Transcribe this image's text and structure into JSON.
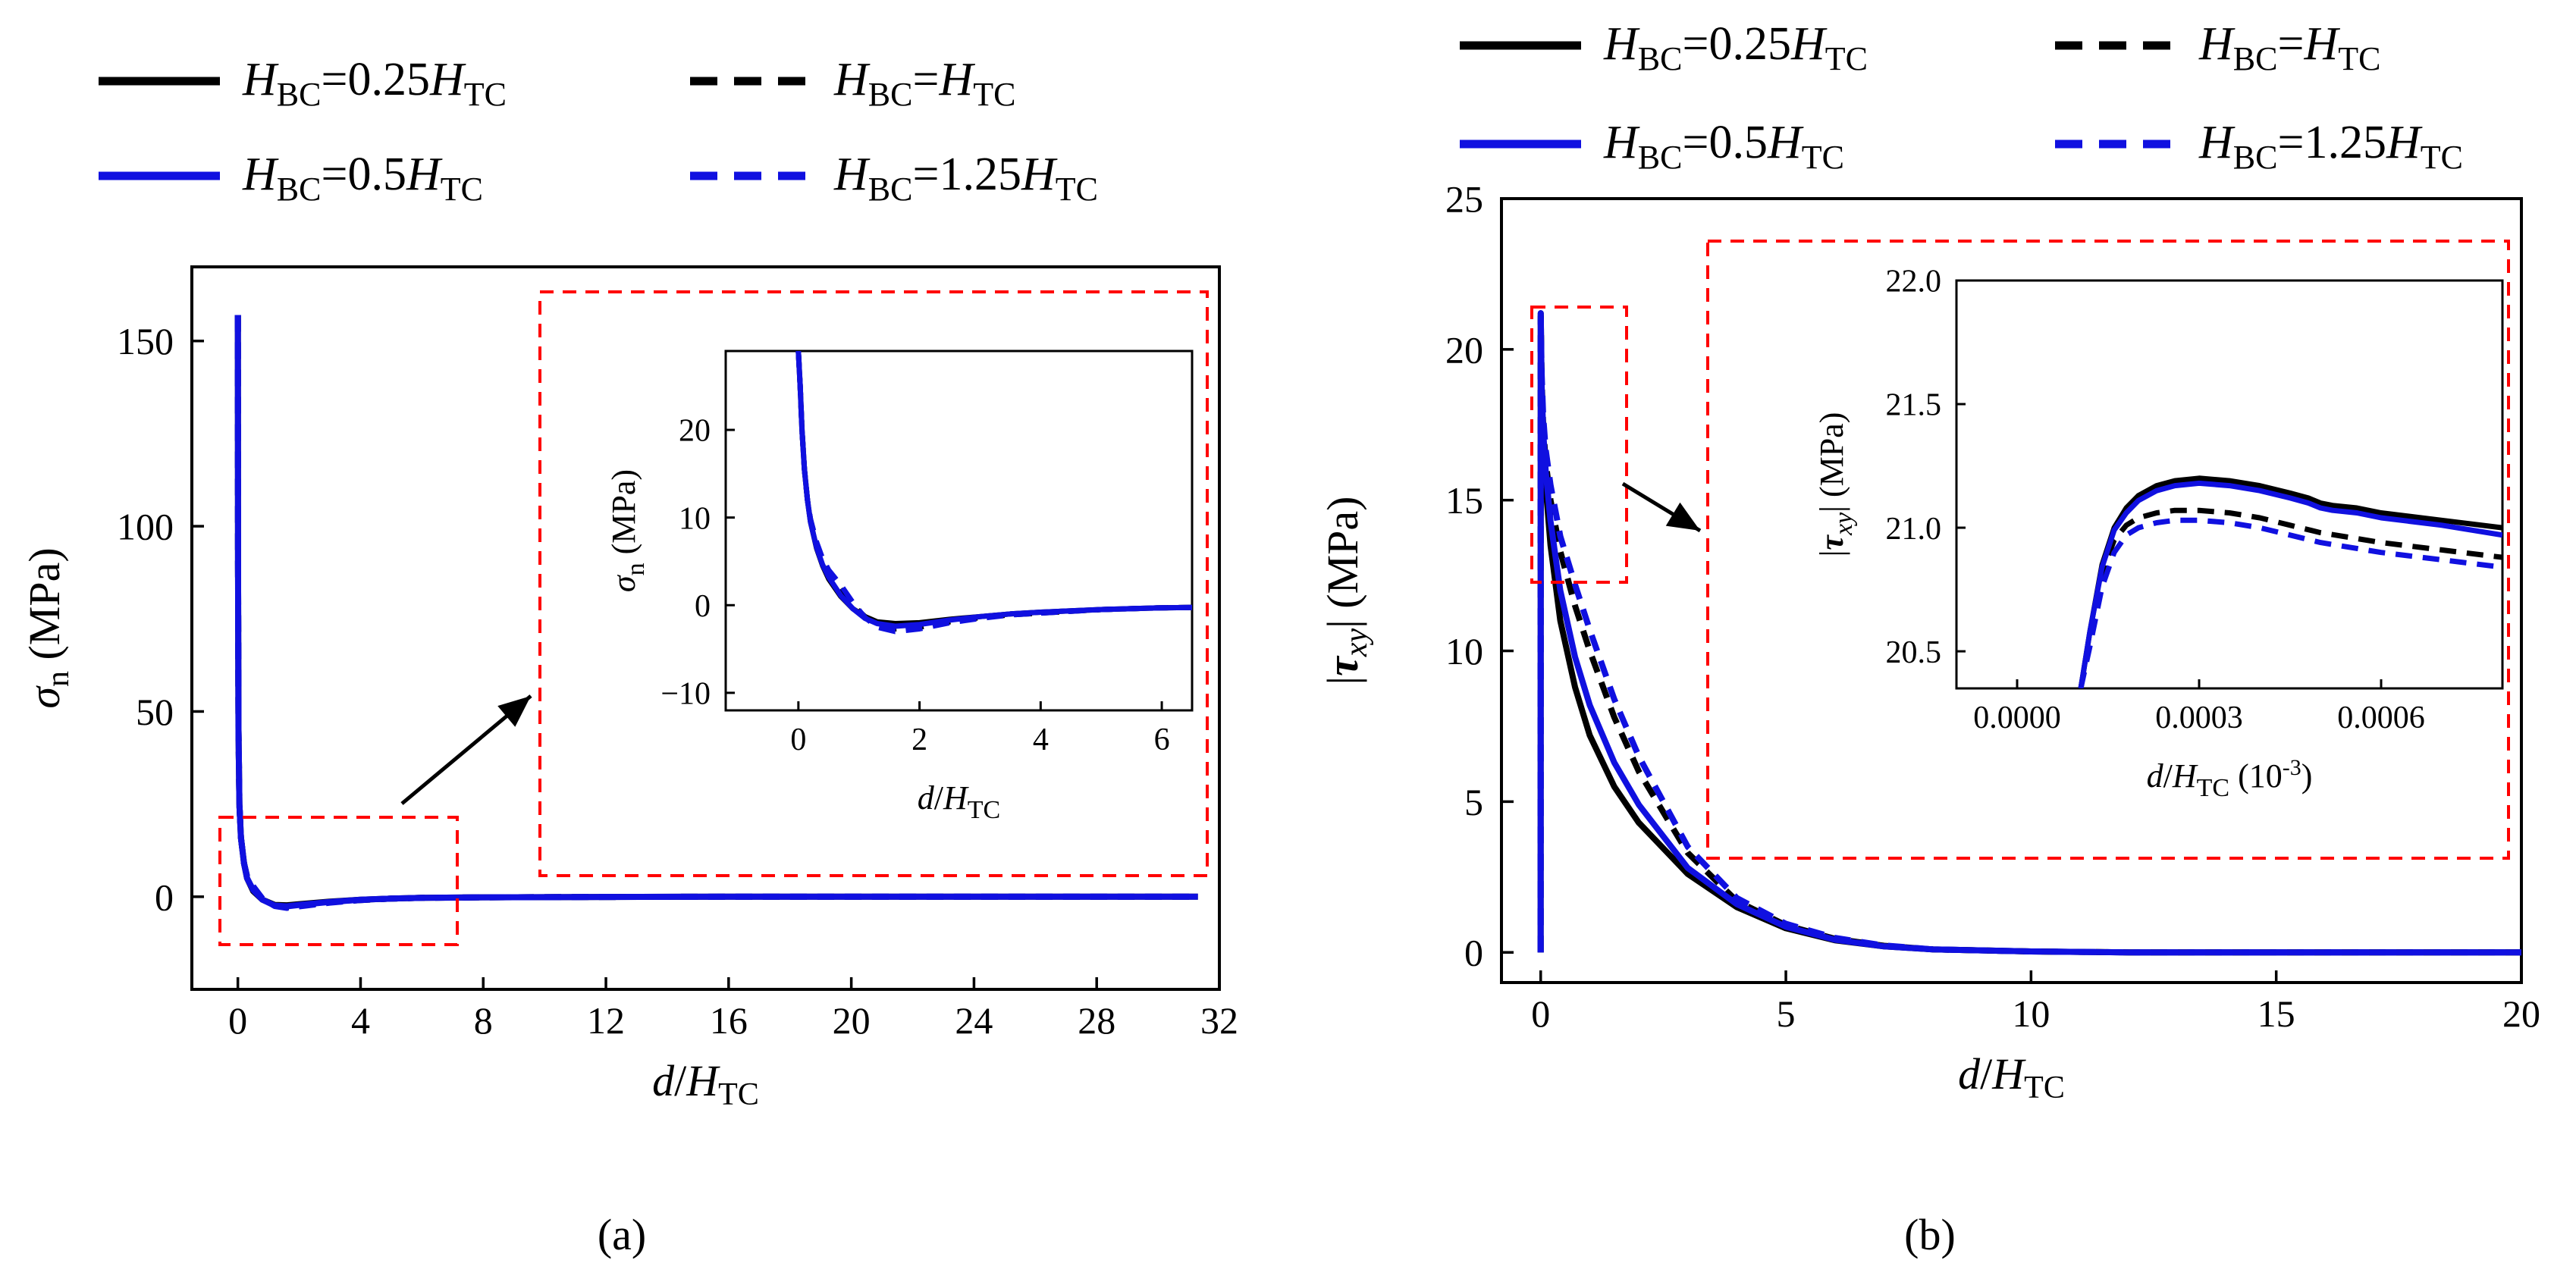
{
  "chart_data": [
    {
      "id": "a",
      "type": "line",
      "caption": "(a)",
      "xlabel": "d/HTC",
      "ylabel": "σn (MPa)",
      "xlim": [
        -1.5,
        32
      ],
      "ylim": [
        -25,
        170
      ],
      "xticks": [
        0,
        4,
        8,
        12,
        16,
        20,
        24,
        28,
        32
      ],
      "yticks": [
        0,
        50,
        100,
        150
      ],
      "zoom_region": {
        "x": [
          -0.5,
          6.5
        ],
        "y": [
          -12,
          22
        ]
      },
      "legend": [
        {
          "name": "HBC=0.25HTC",
          "base": "H",
          "sub1": "BC",
          "eq": "=0.25",
          "base2": "H",
          "sub2": "TC",
          "color": "#000000",
          "dash": "solid"
        },
        {
          "name": "HBC=HTC",
          "base": "H",
          "sub1": "BC",
          "eq": "=",
          "base2": "H",
          "sub2": "TC",
          "color": "#000000",
          "dash": "dashed"
        },
        {
          "name": "HBC=0.5HTC",
          "base": "H",
          "sub1": "BC",
          "eq": "=0.5",
          "base2": "H",
          "sub2": "TC",
          "color": "#1010e0",
          "dash": "solid"
        },
        {
          "name": "HBC=1.25HTC",
          "base": "H",
          "sub1": "BC",
          "eq": "=1.25",
          "base2": "H",
          "sub2": "TC",
          "color": "#1010e0",
          "dash": "dashed"
        }
      ],
      "series": [
        {
          "name": "HBC=0.25HTC",
          "color": "#000000",
          "dash": "solid",
          "x": [
            0,
            0.005,
            0.02,
            0.05,
            0.1,
            0.2,
            0.3,
            0.5,
            0.8,
            1.2,
            1.6,
            2,
            3,
            4,
            5,
            6,
            8,
            12,
            16,
            20,
            25,
            31.3
          ],
          "y": [
            157,
            90,
            45,
            25,
            16,
            9,
            5,
            1.5,
            -0.8,
            -2.2,
            -2.3,
            -2.0,
            -1.3,
            -0.8,
            -0.5,
            -0.3,
            -0.15,
            -0.05,
            0,
            0,
            0,
            0
          ]
        },
        {
          "name": "HBC=HTC",
          "color": "#000000",
          "dash": "dashed",
          "x": [
            0,
            0.005,
            0.02,
            0.05,
            0.1,
            0.2,
            0.3,
            0.5,
            0.8,
            1.2,
            1.6,
            2,
            3,
            4,
            5,
            6,
            8,
            12,
            16,
            20,
            25,
            31.3
          ],
          "y": [
            157,
            90,
            45,
            25,
            16,
            9,
            5.5,
            2.5,
            -0.5,
            -2.3,
            -2.8,
            -2.4,
            -1.5,
            -0.9,
            -0.5,
            -0.3,
            -0.15,
            -0.05,
            0,
            0,
            0,
            0
          ]
        },
        {
          "name": "HBC=0.5HTC",
          "color": "#1010e0",
          "dash": "solid",
          "x": [
            0,
            0.005,
            0.02,
            0.05,
            0.1,
            0.2,
            0.3,
            0.5,
            0.8,
            1.2,
            1.6,
            2,
            3,
            4,
            5,
            6,
            8,
            12,
            16,
            20,
            25,
            31.3
          ],
          "y": [
            157,
            90,
            45,
            25,
            16,
            9,
            5,
            1.8,
            -0.8,
            -2.4,
            -2.6,
            -2.2,
            -1.4,
            -0.8,
            -0.5,
            -0.3,
            -0.15,
            -0.05,
            0,
            0,
            0,
            0
          ]
        },
        {
          "name": "HBC=1.25HTC",
          "color": "#1010e0",
          "dash": "dashed",
          "x": [
            0,
            0.005,
            0.02,
            0.05,
            0.1,
            0.2,
            0.3,
            0.5,
            0.8,
            1.2,
            1.6,
            2,
            3,
            4,
            5,
            6,
            8,
            12,
            16,
            20,
            25,
            31.3
          ],
          "y": [
            157,
            90,
            45,
            25,
            16,
            9,
            5.5,
            2.8,
            -0.5,
            -2.5,
            -3.0,
            -2.6,
            -1.6,
            -0.9,
            -0.5,
            -0.3,
            -0.15,
            -0.05,
            0,
            0,
            0,
            0
          ]
        }
      ],
      "inset": {
        "xlabel": "d/HTC",
        "ylabel": "σn (MPa)",
        "xlim": [
          -1.2,
          6.5
        ],
        "ylim": [
          -12,
          29
        ],
        "xticks": [
          0,
          2,
          4,
          6
        ],
        "yticks": [
          -10,
          0,
          10,
          20
        ],
        "ytick_labels": [
          "−10",
          "0",
          "10",
          "20"
        ],
        "series": [
          {
            "name": "HBC=0.25HTC",
            "color": "#000000",
            "dash": "solid",
            "x": [
              0,
              0.03,
              0.06,
              0.1,
              0.15,
              0.2,
              0.3,
              0.4,
              0.5,
              0.7,
              0.9,
              1.1,
              1.3,
              1.6,
              2,
              2.5,
              3,
              3.5,
              4,
              5,
              6,
              6.5
            ],
            "y": [
              29,
              25,
              20,
              15.5,
              12,
              9.5,
              6.5,
              4.5,
              3,
              1,
              -0.4,
              -1.3,
              -1.9,
              -2.1,
              -2.0,
              -1.6,
              -1.3,
              -1.0,
              -0.8,
              -0.5,
              -0.3,
              -0.25
            ]
          },
          {
            "name": "HBC=HTC",
            "color": "#000000",
            "dash": "dashed",
            "x": [
              0,
              0.03,
              0.06,
              0.1,
              0.15,
              0.2,
              0.3,
              0.4,
              0.5,
              0.7,
              0.9,
              1.1,
              1.3,
              1.6,
              2,
              2.5,
              3,
              3.5,
              4,
              5,
              6,
              6.5
            ],
            "y": [
              29,
              25,
              20,
              15.5,
              12,
              9.8,
              7,
              5,
              3.7,
              1.8,
              0,
              -1.3,
              -2.2,
              -2.7,
              -2.5,
              -1.9,
              -1.4,
              -1.1,
              -0.9,
              -0.5,
              -0.3,
              -0.25
            ]
          },
          {
            "name": "HBC=0.5HTC",
            "color": "#1010e0",
            "dash": "solid",
            "x": [
              0,
              0.03,
              0.06,
              0.1,
              0.15,
              0.2,
              0.3,
              0.4,
              0.5,
              0.7,
              0.9,
              1.1,
              1.3,
              1.6,
              2,
              2.5,
              3,
              3.5,
              4,
              5,
              6,
              6.5
            ],
            "y": [
              29,
              25,
              20,
              15.5,
              12,
              9.5,
              6.6,
              4.6,
              3.2,
              1.1,
              -0.4,
              -1.5,
              -2.1,
              -2.4,
              -2.2,
              -1.7,
              -1.3,
              -1.0,
              -0.8,
              -0.5,
              -0.3,
              -0.25
            ]
          },
          {
            "name": "HBC=1.25HTC",
            "color": "#1010e0",
            "dash": "dashed",
            "x": [
              0,
              0.03,
              0.06,
              0.1,
              0.15,
              0.2,
              0.3,
              0.4,
              0.5,
              0.7,
              0.9,
              1.1,
              1.3,
              1.6,
              2,
              2.5,
              3,
              3.5,
              4,
              5,
              6,
              6.5
            ],
            "y": [
              29,
              25,
              20,
              15.5,
              12,
              9.8,
              7.2,
              5.3,
              4,
              2.3,
              0.3,
              -1.4,
              -2.5,
              -3.0,
              -2.7,
              -2.0,
              -1.5,
              -1.1,
              -0.9,
              -0.5,
              -0.3,
              -0.25
            ]
          }
        ]
      }
    },
    {
      "id": "b",
      "type": "line",
      "caption": "(b)",
      "xlabel": "d/HTC",
      "ylabel": "|τxy| (MPa)",
      "xlim": [
        -0.8,
        20
      ],
      "ylim": [
        -1,
        25
      ],
      "xticks": [
        0,
        5,
        10,
        15,
        20
      ],
      "yticks": [
        0,
        5,
        10,
        15,
        20,
        25
      ],
      "zoom_region": {
        "x": [
          -0.3,
          1.6
        ],
        "y": [
          12.3,
          21.3
        ]
      },
      "legend": [
        {
          "name": "HBC=0.25HTC",
          "base": "H",
          "sub1": "BC",
          "eq": "=0.25",
          "base2": "H",
          "sub2": "TC",
          "color": "#000000",
          "dash": "solid"
        },
        {
          "name": "HBC=HTC",
          "base": "H",
          "sub1": "BC",
          "eq": "=",
          "base2": "H",
          "sub2": "TC",
          "color": "#000000",
          "dash": "dashed"
        },
        {
          "name": "HBC=0.5HTC",
          "base": "H",
          "sub1": "BC",
          "eq": "=0.5",
          "base2": "H",
          "sub2": "TC",
          "color": "#1010e0",
          "dash": "solid"
        },
        {
          "name": "HBC=1.25HTC",
          "base": "H",
          "sub1": "BC",
          "eq": "=1.25",
          "base2": "H",
          "sub2": "TC",
          "color": "#1010e0",
          "dash": "dashed"
        }
      ],
      "series": [
        {
          "name": "HBC=0.25HTC",
          "color": "#000000",
          "dash": "solid",
          "x": [
            0,
            0.001,
            0.02,
            0.05,
            0.1,
            0.2,
            0.4,
            0.7,
            1,
            1.5,
            2,
            3,
            4,
            5,
            6,
            7,
            8,
            10,
            12,
            15,
            20
          ],
          "y": [
            0,
            21.2,
            18.5,
            17,
            15.5,
            13.5,
            11,
            8.8,
            7.2,
            5.5,
            4.3,
            2.6,
            1.5,
            0.8,
            0.4,
            0.2,
            0.1,
            0.03,
            0,
            0,
            0
          ]
        },
        {
          "name": "HBC=HTC",
          "color": "#000000",
          "dash": "dashed",
          "x": [
            0,
            0.001,
            0.02,
            0.05,
            0.1,
            0.2,
            0.4,
            0.7,
            1,
            1.5,
            2,
            3,
            4,
            5,
            6,
            7,
            8,
            10,
            12,
            15,
            20
          ],
          "y": [
            0,
            21.1,
            19,
            17.5,
            16.3,
            15,
            13.3,
            11.5,
            10,
            7.8,
            6,
            3.3,
            1.7,
            0.9,
            0.45,
            0.22,
            0.1,
            0.03,
            0,
            0,
            0
          ]
        },
        {
          "name": "HBC=0.5HTC",
          "color": "#1010e0",
          "dash": "solid",
          "x": [
            0,
            0.001,
            0.02,
            0.05,
            0.1,
            0.2,
            0.4,
            0.7,
            1,
            1.5,
            2,
            3,
            4,
            5,
            6,
            7,
            8,
            10,
            12,
            15,
            20
          ],
          "y": [
            0,
            21.2,
            18.8,
            17.3,
            16,
            14.3,
            12,
            9.8,
            8.2,
            6.3,
            4.9,
            2.8,
            1.6,
            0.85,
            0.42,
            0.2,
            0.1,
            0.03,
            0,
            0,
            0
          ]
        },
        {
          "name": "HBC=1.25HTC",
          "color": "#1010e0",
          "dash": "dashed",
          "x": [
            0,
            0.001,
            0.02,
            0.05,
            0.1,
            0.2,
            0.4,
            0.7,
            1,
            1.5,
            2,
            3,
            4,
            5,
            6,
            7,
            8,
            10,
            12,
            15,
            20
          ],
          "y": [
            0,
            21.0,
            19.2,
            17.8,
            16.7,
            15.5,
            13.8,
            12.2,
            10.7,
            8.4,
            6.5,
            3.5,
            1.8,
            0.95,
            0.48,
            0.23,
            0.1,
            0.03,
            0,
            0,
            0
          ]
        }
      ],
      "inset": {
        "xlabel": "d/HTC (10-3)",
        "ylabel": "|τxy| (MPa)",
        "xlim": [
          -0.0001,
          0.0008
        ],
        "ylim": [
          20.35,
          22.0
        ],
        "xticks": [
          0.0,
          0.0003,
          0.0006
        ],
        "xtick_labels": [
          "0.0000",
          "0.0003",
          "0.0006"
        ],
        "yticks": [
          20.5,
          21.0,
          21.5,
          22.0
        ],
        "ytick_labels": [
          "20.5",
          "21.0",
          "21.5",
          "22.0"
        ],
        "series": [
          {
            "name": "HBC=0.25HTC",
            "color": "#000000",
            "dash": "solid",
            "x": [
              0.000105,
              0.00012,
              0.00014,
              0.00016,
              0.00018,
              0.0002,
              0.00023,
              0.00026,
              0.0003,
              0.00035,
              0.0004,
              0.00045,
              0.00048,
              0.0005,
              0.00052,
              0.00056,
              0.0006,
              0.0007,
              0.0008
            ],
            "y": [
              20.35,
              20.58,
              20.85,
              21.0,
              21.08,
              21.13,
              21.17,
              21.19,
              21.2,
              21.19,
              21.17,
              21.14,
              21.12,
              21.1,
              21.09,
              21.08,
              21.06,
              21.03,
              21.0
            ]
          },
          {
            "name": "HBC=HTC",
            "color": "#000000",
            "dash": "dashed",
            "x": [
              0.000105,
              0.00012,
              0.00014,
              0.00016,
              0.00018,
              0.0002,
              0.00023,
              0.00026,
              0.0003,
              0.00035,
              0.0004,
              0.00045,
              0.0005,
              0.0006,
              0.0007,
              0.0008
            ],
            "y": [
              20.35,
              20.56,
              20.82,
              20.95,
              21.01,
              21.04,
              21.06,
              21.07,
              21.07,
              21.06,
              21.04,
              21.01,
              20.98,
              20.94,
              20.91,
              20.88
            ]
          },
          {
            "name": "HBC=0.5HTC",
            "color": "#1010e0",
            "dash": "solid",
            "x": [
              0.000105,
              0.00012,
              0.00014,
              0.00016,
              0.00018,
              0.0002,
              0.00023,
              0.00026,
              0.0003,
              0.00035,
              0.0004,
              0.00045,
              0.00048,
              0.0005,
              0.00052,
              0.00056,
              0.0006,
              0.0007,
              0.0008
            ],
            "y": [
              20.35,
              20.58,
              20.84,
              20.99,
              21.06,
              21.11,
              21.15,
              21.17,
              21.18,
              21.17,
              21.15,
              21.12,
              21.1,
              21.08,
              21.07,
              21.06,
              21.04,
              21.01,
              20.97
            ]
          },
          {
            "name": "HBC=1.25HTC",
            "color": "#1010e0",
            "dash": "dashed",
            "x": [
              0.000105,
              0.00012,
              0.00014,
              0.00016,
              0.00018,
              0.0002,
              0.00023,
              0.00026,
              0.0003,
              0.00035,
              0.0004,
              0.00045,
              0.0005,
              0.0006,
              0.0007,
              0.0008
            ],
            "y": [
              20.35,
              20.52,
              20.76,
              20.9,
              20.97,
              21.0,
              21.02,
              21.03,
              21.03,
              21.02,
              21.0,
              20.97,
              20.94,
              20.9,
              20.87,
              20.84
            ]
          }
        ]
      }
    }
  ]
}
